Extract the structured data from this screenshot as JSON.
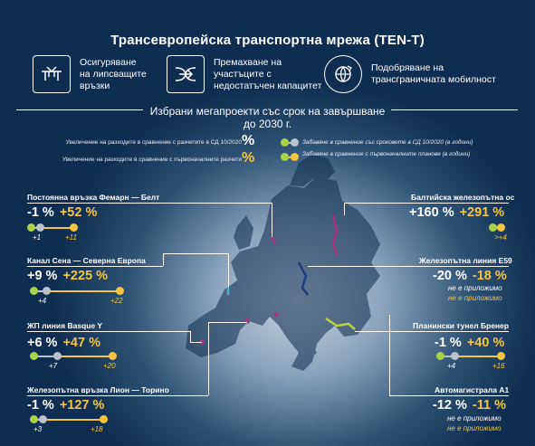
{
  "title": "Трансевропейска транспортна мрежа (TEN-T)",
  "features": [
    {
      "icon": "bridge-gap-icon",
      "text": [
        "Осигуряване",
        "на липсващите",
        "връзки"
      ]
    },
    {
      "icon": "bottleneck-arrow-icon",
      "text": [
        "Премахване на",
        "участъците с",
        "недостатъчен капацитет"
      ]
    },
    {
      "icon": "border-crossing-icon",
      "text": [
        "Подобряване на",
        "трансграничната мобилност"
      ]
    }
  ],
  "subtitle": [
    "Избрани мегапроекти със срок на завършване",
    "до 2030 г."
  ],
  "legend": {
    "cost_vs_sd": "Увеличение на разходите в сравнение с разчетите в СД 10/2020",
    "cost_vs_initial": "Увеличение на разходите в сравнение с първоначалните разчети",
    "pct_symbol": "%",
    "delay_vs_sd": "Забавяне в сравнение със сроковете в СД 10/2020 (в години)",
    "delay_vs_initial": "Забавяне в сравнение с първоначалните планове (в години)"
  },
  "colors": {
    "white": "#ffffff",
    "yellow": "#f5c542",
    "green": "#a8d34a",
    "grey": "#b9c3cc",
    "background": "#0f2d50"
  },
  "projects": [
    {
      "name": "Постоянна връзка Фемарн — Белт",
      "cost_sd": "-1 %",
      "cost_initial": "+52 %",
      "delay_sd": "+1",
      "delay_initial": "+11"
    },
    {
      "name": "Канал Сена — Северна Европа",
      "cost_sd": "+9 %",
      "cost_initial": "+225 %",
      "delay_sd": "+4",
      "delay_initial": "+22"
    },
    {
      "name": "ЖП линия Basque Y",
      "cost_sd": "+6 %",
      "cost_initial": "+47 %",
      "delay_sd": "+7",
      "delay_initial": "+20"
    },
    {
      "name": "Железопътна връзка Лион — Торино",
      "cost_sd": "-1 %",
      "cost_initial": "+127 %",
      "delay_sd": "+3",
      "delay_initial": "+18"
    },
    {
      "name": "Балтийска железопътна ос",
      "cost_sd": "+160 %",
      "cost_initial": "+291 %",
      "delay_sd": "",
      "delay_initial": ">+4"
    },
    {
      "name": "Железопътна линия Е59",
      "cost_sd": "-20 %",
      "cost_initial": "-18 %",
      "na_sd": "не е приложимо",
      "na_initial": "не е приложимо"
    },
    {
      "name": "Планински тунел Бренер",
      "cost_sd": "-1 %",
      "cost_initial": "+40 %",
      "delay_sd": "+4",
      "delay_initial": "+16"
    },
    {
      "name": "Автомагистрала А1",
      "cost_sd": "-12 %",
      "cost_initial": "-11 %",
      "na_sd": "не е приложимо",
      "na_initial": "не е приложимо"
    }
  ]
}
